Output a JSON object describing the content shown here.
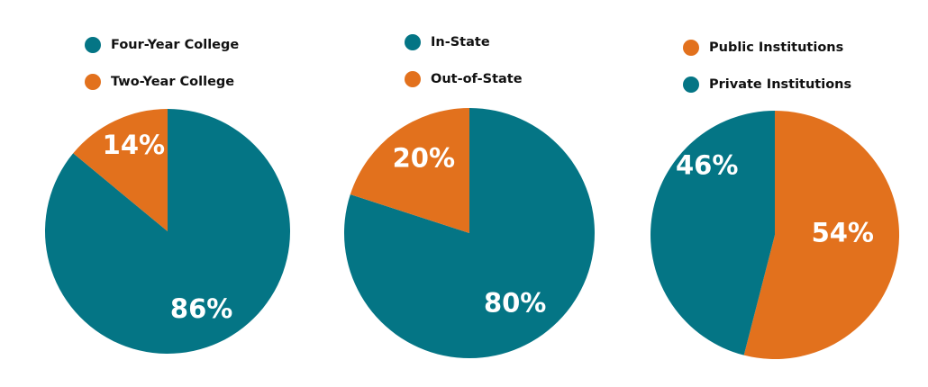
{
  "colors": {
    "teal": "#047585",
    "orange": "#e2711d"
  },
  "chart_data": [
    {
      "type": "pie",
      "slices": [
        {
          "label": "Four-Year College",
          "value": 86,
          "value_label": "86%",
          "color": "#047585"
        },
        {
          "label": "Two-Year College",
          "value": 14,
          "value_label": "14%",
          "color": "#e2711d"
        }
      ],
      "legend": [
        "Four-Year College",
        "Two-Year College"
      ],
      "legend_position": "top"
    },
    {
      "type": "pie",
      "slices": [
        {
          "label": "In-State",
          "value": 80,
          "value_label": "80%",
          "color": "#047585"
        },
        {
          "label": "Out-of-State",
          "value": 20,
          "value_label": "20%",
          "color": "#e2711d"
        }
      ],
      "legend": [
        "In-State",
        "Out-of-State"
      ],
      "legend_position": "top"
    },
    {
      "type": "pie",
      "slices": [
        {
          "label": "Public Institutions",
          "value": 54,
          "value_label": "54%",
          "color": "#e2711d"
        },
        {
          "label": "Private Institutions",
          "value": 46,
          "value_label": "46%",
          "color": "#047585"
        }
      ],
      "legend": [
        "Public Institutions",
        "Private Institutions"
      ],
      "legend_position": "top"
    }
  ]
}
